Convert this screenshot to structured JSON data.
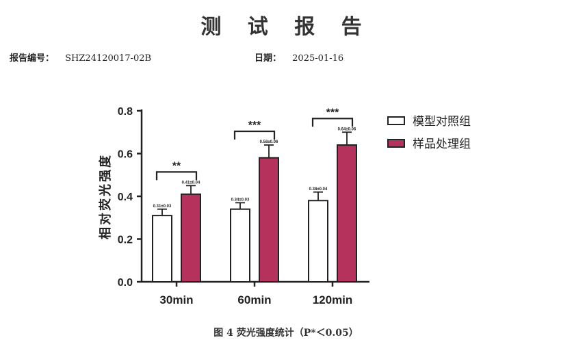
{
  "report": {
    "title": "测 试 报 告",
    "report_no_label": "报告编号：",
    "report_no": "SHZ24120017-02B",
    "date_label": "日期：",
    "date": "2025-01-16",
    "caption": "图 4 荧光强度统计（P*＜0.05）"
  },
  "chart_data": {
    "type": "bar",
    "categories": [
      "30min",
      "60min",
      "120min"
    ],
    "ylabel": "相对荧光强度",
    "xlabel": "",
    "ylim": [
      0,
      0.8
    ],
    "yticks": [
      "0.0",
      "0.2",
      "0.4",
      "0.6",
      "0.8"
    ],
    "series": [
      {
        "name": "模型对照组",
        "color": "#ffffff",
        "values": [
          0.31,
          0.34,
          0.38
        ],
        "errors": [
          0.03,
          0.03,
          0.04
        ],
        "labels": [
          "0.31±0.03",
          "0.34±0.03",
          "0.38±0.04"
        ]
      },
      {
        "name": "样品处理组",
        "color": "#b5325c",
        "values": [
          0.41,
          0.58,
          0.64
        ],
        "errors": [
          0.04,
          0.06,
          0.06
        ],
        "labels": [
          "0.41±0.04",
          "0.58±0.06",
          "0.64±0.06"
        ]
      }
    ],
    "significance": [
      "**",
      "***",
      "***"
    ],
    "legend_position": "top-right"
  }
}
